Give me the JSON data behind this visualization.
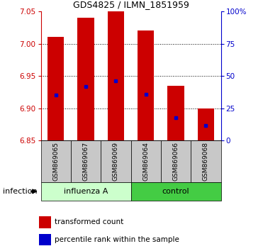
{
  "title": "GDS4825 / ILMN_1851959",
  "samples": [
    "GSM869065",
    "GSM869067",
    "GSM869069",
    "GSM869064",
    "GSM869066",
    "GSM869068"
  ],
  "bar_tops": [
    7.01,
    7.04,
    7.052,
    7.02,
    6.935,
    6.9
  ],
  "bar_bottom": 6.85,
  "percentile_values": [
    6.921,
    6.934,
    6.942,
    6.922,
    6.885,
    6.873
  ],
  "ylim_left": [
    6.85,
    7.05
  ],
  "yticks_left": [
    6.85,
    6.9,
    6.95,
    7.0,
    7.05
  ],
  "yticks_right": [
    0,
    25,
    50,
    75,
    100
  ],
  "bar_color": "#cc0000",
  "dot_color": "#0000cc",
  "influenza_color": "#ccffcc",
  "control_color": "#44cc44",
  "infection_label": "infection",
  "legend_bar_label": "transformed count",
  "legend_dot_label": "percentile rank within the sample",
  "bar_width": 0.55,
  "tick_label_bg": "#c8c8c8",
  "title_fontsize": 9,
  "axis_fontsize": 7.5,
  "label_fontsize": 6.5,
  "group_fontsize": 8,
  "legend_fontsize": 7.5,
  "infection_fontsize": 8
}
